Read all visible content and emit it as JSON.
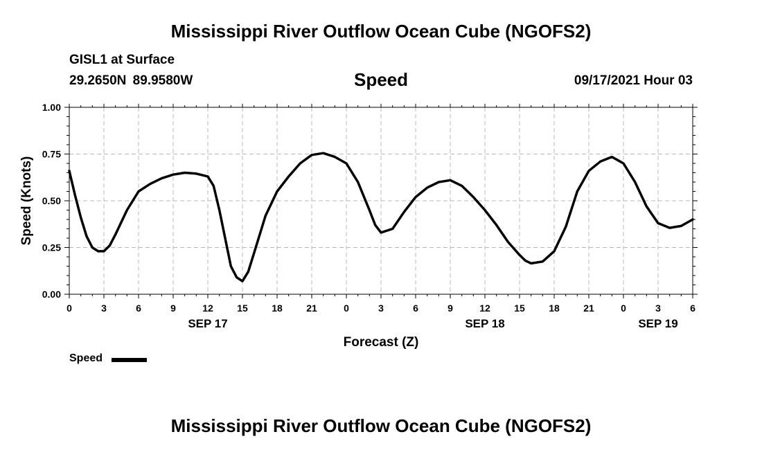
{
  "header": {
    "title": "Mississippi River Outflow Ocean Cube (NGOFS2)",
    "station": "GISL1 at Surface",
    "coordinates": "29.2650N  89.9580W",
    "variable_title": "Speed",
    "datetime": "09/17/2021 Hour 03"
  },
  "footer": {
    "title": "Mississippi River Outflow Ocean Cube (NGOFS2)"
  },
  "legend": {
    "label": "Speed",
    "color": "#000000"
  },
  "chart_data": {
    "type": "line",
    "title": "Speed",
    "xlabel": "Forecast (Z)",
    "ylabel": "Speed (Knots)",
    "xlim": [
      0,
      54
    ],
    "ylim": [
      0,
      1
    ],
    "x_tick_labels": [
      "0",
      "3",
      "6",
      "9",
      "12",
      "15",
      "18",
      "21",
      "0",
      "3",
      "6",
      "9",
      "12",
      "15",
      "18",
      "21",
      "0",
      "3",
      "6"
    ],
    "y_tick_labels": [
      "0.00",
      "0.25",
      "0.50",
      "0.75",
      "1.00"
    ],
    "y_ticks": [
      0,
      0.25,
      0.5,
      0.75,
      1.0
    ],
    "date_labels": [
      {
        "label": "SEP 17",
        "hour": 12
      },
      {
        "label": "SEP 18",
        "hour": 36
      },
      {
        "label": "SEP 19",
        "hour": 51
      }
    ],
    "grid": true,
    "series": [
      {
        "name": "Speed",
        "color": "#000000",
        "x": [
          0,
          0.5,
          1,
          1.5,
          2,
          2.5,
          3,
          3.5,
          4,
          5,
          6,
          7,
          8,
          9,
          10,
          11,
          12,
          12.5,
          13,
          13.5,
          14,
          14.5,
          15,
          15.5,
          16,
          17,
          18,
          19,
          20,
          21,
          22,
          23,
          24,
          25,
          26,
          26.5,
          27,
          28,
          29,
          30,
          31,
          32,
          33,
          34,
          35,
          36,
          37,
          38,
          39,
          39.5,
          40,
          41,
          42,
          43,
          44,
          45,
          46,
          47,
          48,
          49,
          50,
          51,
          52,
          53,
          54
        ],
        "values": [
          0.66,
          0.53,
          0.41,
          0.31,
          0.25,
          0.23,
          0.23,
          0.26,
          0.32,
          0.45,
          0.55,
          0.59,
          0.62,
          0.64,
          0.65,
          0.645,
          0.63,
          0.58,
          0.45,
          0.3,
          0.15,
          0.09,
          0.07,
          0.12,
          0.22,
          0.42,
          0.55,
          0.63,
          0.7,
          0.745,
          0.755,
          0.735,
          0.7,
          0.6,
          0.45,
          0.37,
          0.33,
          0.35,
          0.44,
          0.52,
          0.57,
          0.6,
          0.61,
          0.58,
          0.52,
          0.45,
          0.37,
          0.28,
          0.21,
          0.18,
          0.165,
          0.175,
          0.23,
          0.36,
          0.55,
          0.66,
          0.71,
          0.735,
          0.7,
          0.6,
          0.47,
          0.38,
          0.355,
          0.365,
          0.4
        ]
      }
    ]
  }
}
